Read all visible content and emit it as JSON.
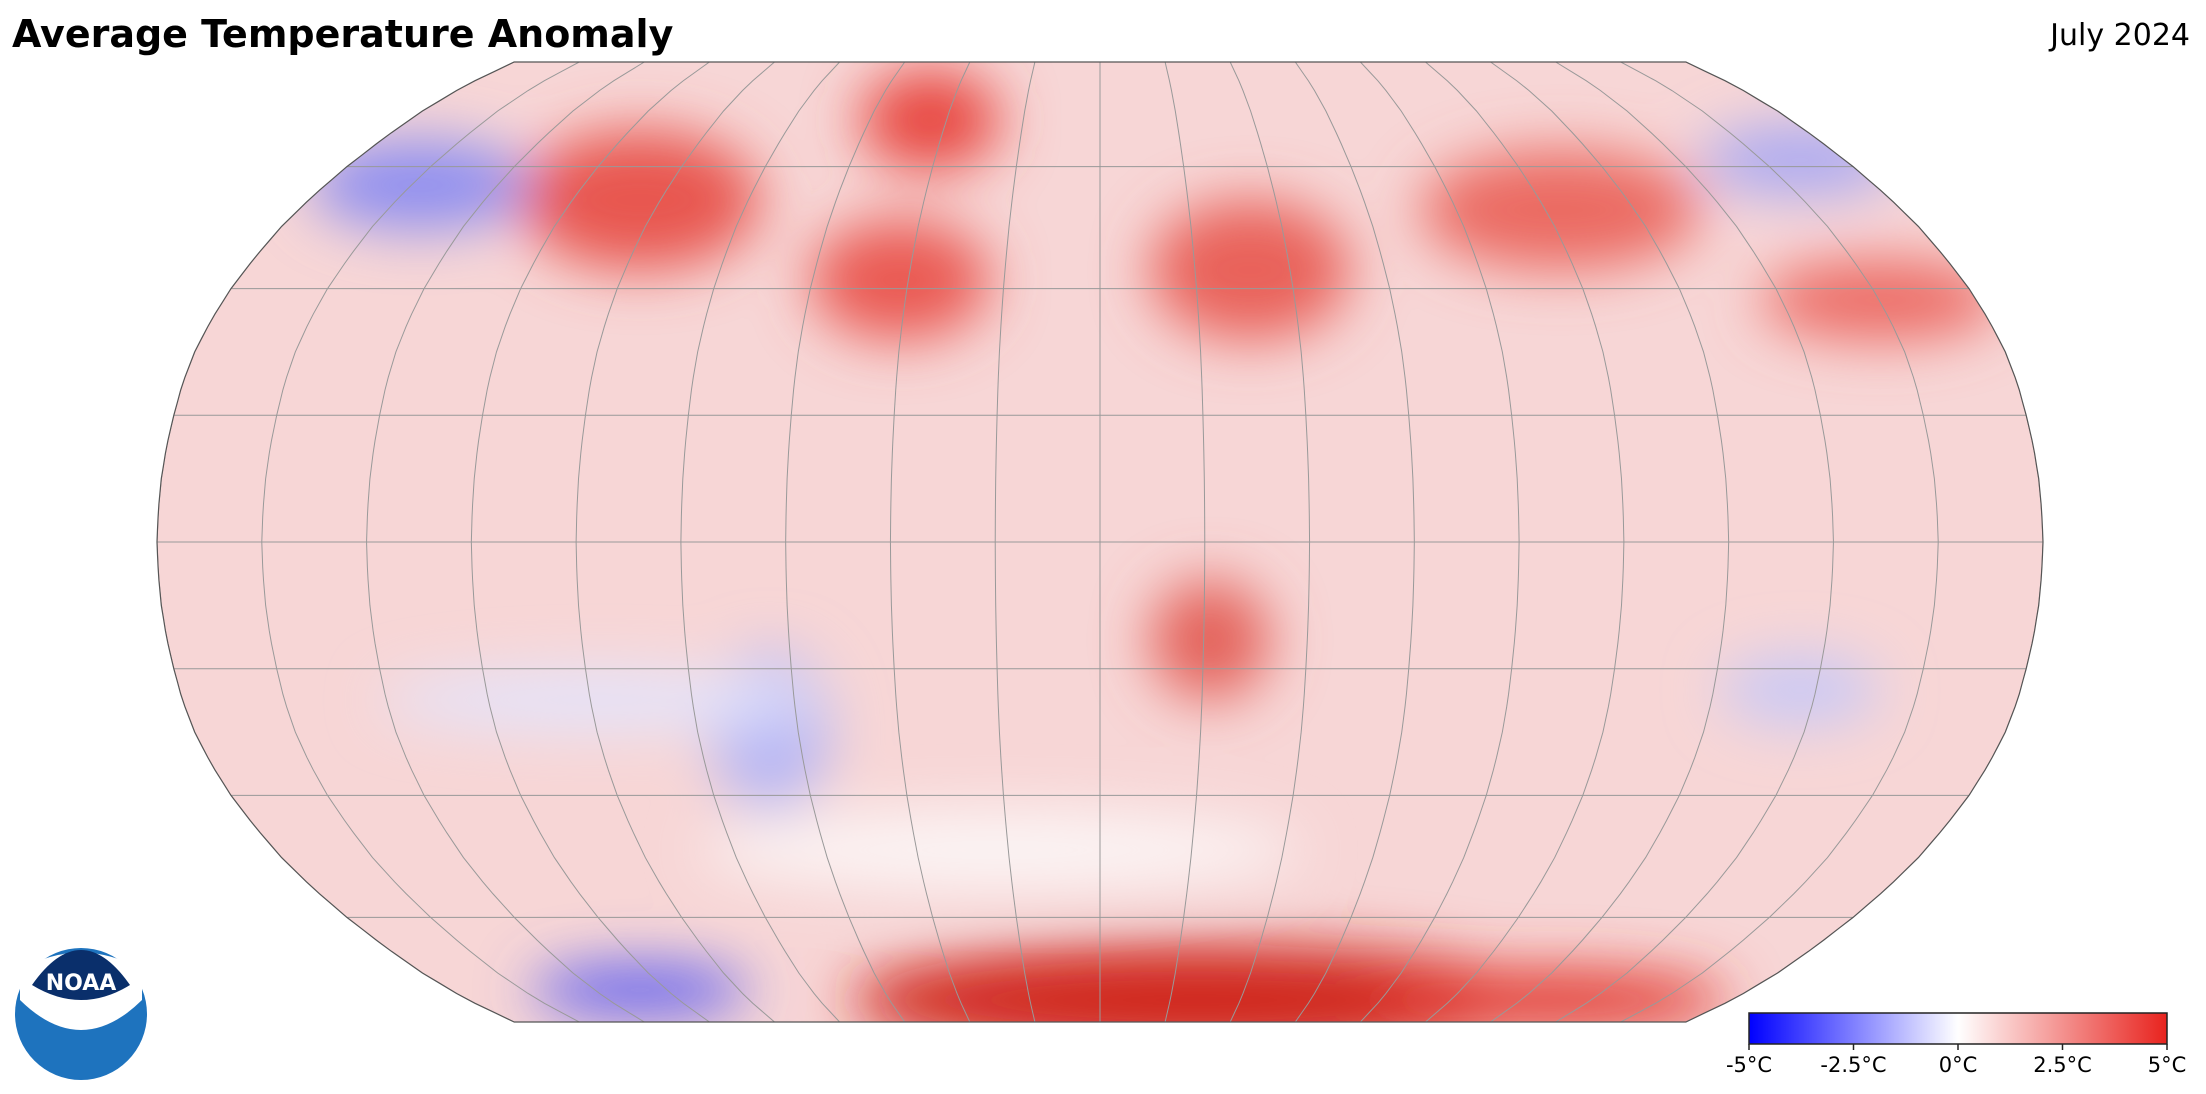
{
  "header": {
    "title": "Average Temperature Anomaly",
    "date": "July 2024"
  },
  "legend": {
    "ticks": [
      {
        "value": -5,
        "label": "-5°C"
      },
      {
        "value": -2.5,
        "label": "-2.5°C"
      },
      {
        "value": 0,
        "label": "0°C"
      },
      {
        "value": 2.5,
        "label": "2.5°C"
      },
      {
        "value": 5,
        "label": "5°C"
      }
    ],
    "colors": [
      "#0000ff",
      "#ffffff",
      "#e8231e"
    ]
  },
  "logo": {
    "text": "NOAA"
  }
}
